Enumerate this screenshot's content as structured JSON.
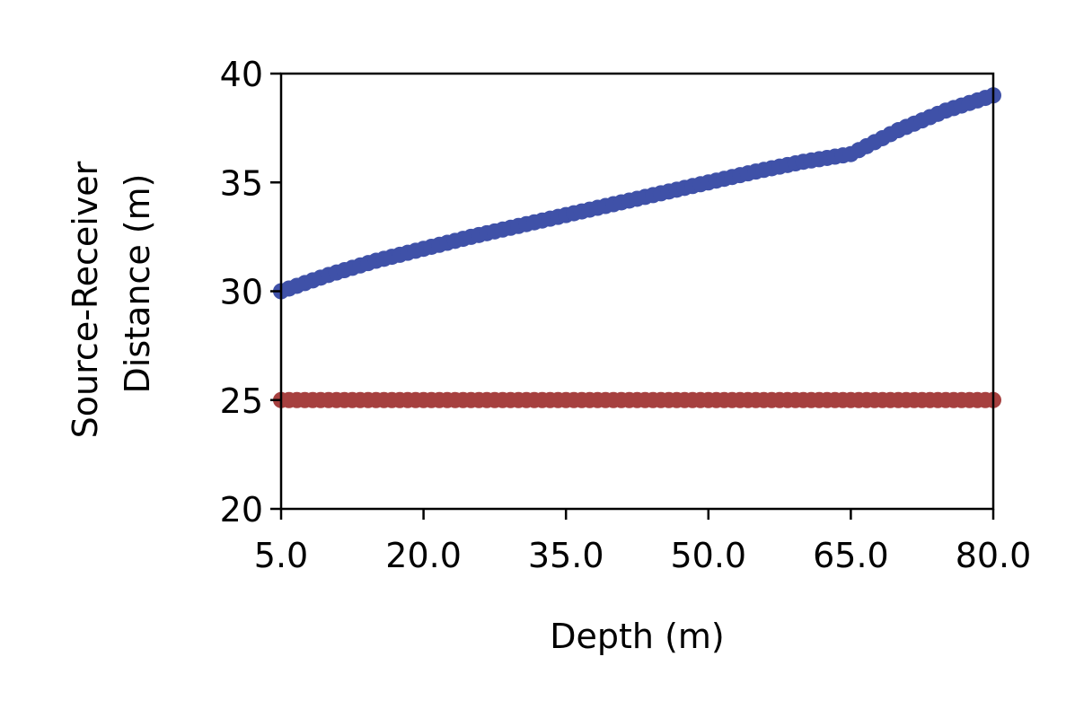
{
  "chart_data": {
    "type": "scatter",
    "title": "",
    "xlabel": "Depth (m)",
    "ylabel_lines": [
      "Source-Receiver",
      "Distance (m)"
    ],
    "xlim": [
      5.0,
      80.0
    ],
    "ylim": [
      20,
      40
    ],
    "xticks": [
      "5.0",
      "20.0",
      "35.0",
      "50.0",
      "65.0",
      "80.0"
    ],
    "xtick_values": [
      5.0,
      20.0,
      35.0,
      50.0,
      65.0,
      80.0
    ],
    "yticks": [
      "20",
      "25",
      "30",
      "35",
      "40"
    ],
    "ytick_values": [
      20,
      25,
      30,
      35,
      40
    ],
    "grid": false,
    "legend": false,
    "x": [
      5,
      10,
      15,
      20,
      25,
      30,
      35,
      40,
      45,
      50,
      55,
      60,
      65,
      70,
      75,
      80
    ],
    "series": [
      {
        "color": "#3f51a8",
        "values": [
          30.0,
          30.75,
          31.4,
          31.95,
          32.5,
          33.0,
          33.5,
          34.0,
          34.5,
          35.0,
          35.5,
          35.95,
          36.3,
          37.4,
          38.3,
          39.0
        ]
      },
      {
        "color": "#a6403f",
        "values": [
          25,
          25,
          25,
          25,
          25,
          25,
          25,
          25,
          25,
          25,
          25,
          25,
          25,
          25,
          25,
          25
        ]
      }
    ]
  }
}
